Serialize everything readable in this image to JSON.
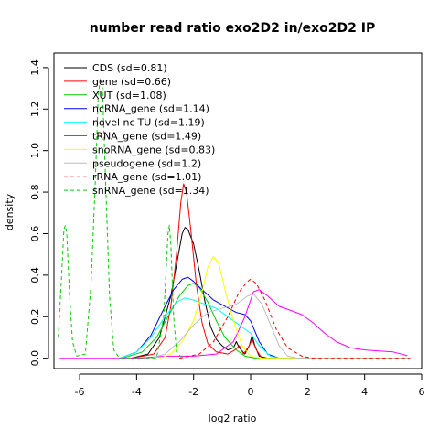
{
  "chart_data": {
    "type": "line",
    "title": "number read ratio exo2D2 in/exo2D2 IP",
    "xlabel": "log2 ratio",
    "ylabel": "density",
    "xlim": [
      -6.9,
      6.0
    ],
    "ylim": [
      -0.05,
      1.47
    ],
    "xticks": [
      -6,
      -4,
      -2,
      0,
      2,
      4,
      6
    ],
    "yticks": [
      0.0,
      0.2,
      0.4,
      0.6,
      0.8,
      1.0,
      1.2,
      1.4
    ],
    "grid": false,
    "legend_position": "top-left",
    "series": [
      {
        "name": "CDS (sd=0.81)",
        "color": "#000000",
        "dash": "solid",
        "points": [
          [
            -4.2,
            0.0
          ],
          [
            -3.6,
            0.02
          ],
          [
            -3.2,
            0.1
          ],
          [
            -2.8,
            0.3
          ],
          [
            -2.6,
            0.45
          ],
          [
            -2.4,
            0.6
          ],
          [
            -2.3,
            0.63
          ],
          [
            -2.2,
            0.62
          ],
          [
            -2.0,
            0.55
          ],
          [
            -1.8,
            0.42
          ],
          [
            -1.6,
            0.27
          ],
          [
            -1.4,
            0.15
          ],
          [
            -1.2,
            0.09
          ],
          [
            -1.0,
            0.06
          ],
          [
            -0.8,
            0.04
          ],
          [
            -0.6,
            0.05
          ],
          [
            -0.5,
            0.08
          ],
          [
            -0.4,
            0.05
          ],
          [
            -0.2,
            0.02
          ],
          [
            -0.05,
            0.06
          ],
          [
            0.05,
            0.11
          ],
          [
            0.15,
            0.06
          ],
          [
            0.3,
            0.01
          ],
          [
            0.6,
            0.0
          ],
          [
            5.6,
            0.0
          ]
        ]
      },
      {
        "name": "gene (sd=0.66)",
        "color": "#ff0000",
        "dash": "solid",
        "points": [
          [
            -4.2,
            0.0
          ],
          [
            -3.4,
            0.02
          ],
          [
            -3.0,
            0.1
          ],
          [
            -2.8,
            0.25
          ],
          [
            -2.6,
            0.5
          ],
          [
            -2.45,
            0.75
          ],
          [
            -2.35,
            0.84
          ],
          [
            -2.25,
            0.8
          ],
          [
            -2.1,
            0.62
          ],
          [
            -1.9,
            0.35
          ],
          [
            -1.7,
            0.17
          ],
          [
            -1.5,
            0.07
          ],
          [
            -1.2,
            0.03
          ],
          [
            -0.8,
            0.02
          ],
          [
            -0.55,
            0.04
          ],
          [
            -0.4,
            0.06
          ],
          [
            -0.25,
            0.02
          ],
          [
            -0.05,
            0.06
          ],
          [
            0.05,
            0.09
          ],
          [
            0.2,
            0.04
          ],
          [
            0.4,
            0.0
          ],
          [
            5.6,
            0.0
          ]
        ]
      },
      {
        "name": "XUT (sd=1.08)",
        "color": "#00cc00",
        "dash": "solid",
        "points": [
          [
            -4.5,
            0.0
          ],
          [
            -3.8,
            0.03
          ],
          [
            -3.3,
            0.1
          ],
          [
            -2.9,
            0.2
          ],
          [
            -2.5,
            0.3
          ],
          [
            -2.2,
            0.35
          ],
          [
            -2.0,
            0.36
          ],
          [
            -1.8,
            0.34
          ],
          [
            -1.5,
            0.27
          ],
          [
            -1.2,
            0.18
          ],
          [
            -0.9,
            0.1
          ],
          [
            -0.5,
            0.04
          ],
          [
            -0.2,
            0.01
          ],
          [
            0.2,
            0.0
          ],
          [
            5.6,
            0.0
          ]
        ]
      },
      {
        "name": "ncRNA_gene (sd=1.14)",
        "color": "#0000ff",
        "dash": "solid",
        "points": [
          [
            -4.6,
            0.0
          ],
          [
            -4.0,
            0.03
          ],
          [
            -3.5,
            0.11
          ],
          [
            -3.0,
            0.25
          ],
          [
            -2.7,
            0.33
          ],
          [
            -2.4,
            0.38
          ],
          [
            -2.2,
            0.39
          ],
          [
            -2.0,
            0.37
          ],
          [
            -1.7,
            0.33
          ],
          [
            -1.3,
            0.28
          ],
          [
            -0.9,
            0.25
          ],
          [
            -0.5,
            0.22
          ],
          [
            -0.2,
            0.21
          ],
          [
            0.0,
            0.18
          ],
          [
            0.3,
            0.08
          ],
          [
            0.6,
            0.02
          ],
          [
            1.0,
            0.0
          ],
          [
            5.6,
            0.0
          ]
        ]
      },
      {
        "name": "novel nc-TU (sd=1.19)",
        "color": "#00ffff",
        "dash": "solid",
        "points": [
          [
            -4.6,
            0.0
          ],
          [
            -4.0,
            0.03
          ],
          [
            -3.5,
            0.1
          ],
          [
            -3.0,
            0.2
          ],
          [
            -2.6,
            0.27
          ],
          [
            -2.3,
            0.29
          ],
          [
            -2.0,
            0.28
          ],
          [
            -1.6,
            0.26
          ],
          [
            -1.2,
            0.24
          ],
          [
            -0.8,
            0.2
          ],
          [
            -0.4,
            0.16
          ],
          [
            0.0,
            0.12
          ],
          [
            0.3,
            0.06
          ],
          [
            0.7,
            0.01
          ],
          [
            1.0,
            0.0
          ],
          [
            5.6,
            0.0
          ]
        ]
      },
      {
        "name": "tRNA_gene (sd=1.49)",
        "color": "#ff00ff",
        "dash": "solid",
        "points": [
          [
            -6.7,
            0.0
          ],
          [
            -4.0,
            0.0
          ],
          [
            -3.0,
            0.01
          ],
          [
            -2.0,
            0.01
          ],
          [
            -1.2,
            0.02
          ],
          [
            -0.6,
            0.08
          ],
          [
            -0.2,
            0.2
          ],
          [
            0.1,
            0.32
          ],
          [
            0.3,
            0.33
          ],
          [
            0.6,
            0.3
          ],
          [
            1.0,
            0.25
          ],
          [
            1.4,
            0.23
          ],
          [
            1.8,
            0.21
          ],
          [
            2.2,
            0.17
          ],
          [
            2.6,
            0.12
          ],
          [
            3.0,
            0.08
          ],
          [
            3.5,
            0.05
          ],
          [
            4.0,
            0.04
          ],
          [
            4.5,
            0.035
          ],
          [
            5.0,
            0.03
          ],
          [
            5.5,
            0.012
          ]
        ]
      },
      {
        "name": "snoRNA_gene (sd=0.83)",
        "color": "#ffff00",
        "dash": "solid",
        "points": [
          [
            -3.2,
            0.0
          ],
          [
            -2.8,
            0.02
          ],
          [
            -2.4,
            0.08
          ],
          [
            -2.0,
            0.18
          ],
          [
            -1.7,
            0.32
          ],
          [
            -1.5,
            0.44
          ],
          [
            -1.3,
            0.49
          ],
          [
            -1.1,
            0.45
          ],
          [
            -0.9,
            0.33
          ],
          [
            -0.6,
            0.18
          ],
          [
            -0.3,
            0.06
          ],
          [
            0.0,
            0.01
          ],
          [
            0.4,
            0.0
          ],
          [
            5.6,
            0.0
          ]
        ]
      },
      {
        "name": "pseudogene (sd=1.2)",
        "color": "#bebebe",
        "dash": "solid",
        "points": [
          [
            -3.5,
            0.0
          ],
          [
            -3.0,
            0.02
          ],
          [
            -2.5,
            0.08
          ],
          [
            -2.0,
            0.16
          ],
          [
            -1.5,
            0.22
          ],
          [
            -1.0,
            0.24
          ],
          [
            -0.5,
            0.26
          ],
          [
            -0.1,
            0.3
          ],
          [
            0.1,
            0.31
          ],
          [
            0.4,
            0.26
          ],
          [
            0.7,
            0.16
          ],
          [
            1.0,
            0.06
          ],
          [
            1.3,
            0.01
          ],
          [
            1.7,
            0.0
          ],
          [
            5.6,
            0.0
          ]
        ]
      },
      {
        "name": "rRNA_gene (sd=1.01)",
        "color": "#ff0000",
        "dash": "dashed",
        "points": [
          [
            -2.5,
            0.0
          ],
          [
            -1.8,
            0.02
          ],
          [
            -1.3,
            0.08
          ],
          [
            -0.8,
            0.2
          ],
          [
            -0.4,
            0.32
          ],
          [
            -0.1,
            0.37
          ],
          [
            0.0,
            0.38
          ],
          [
            0.2,
            0.36
          ],
          [
            0.5,
            0.28
          ],
          [
            0.9,
            0.14
          ],
          [
            1.3,
            0.05
          ],
          [
            1.8,
            0.01
          ],
          [
            2.2,
            0.0
          ],
          [
            5.6,
            0.0
          ]
        ]
      },
      {
        "name": "snRNA_gene (sd=1.34)",
        "color": "#00cc00",
        "dash": "dashed",
        "points": [
          [
            -6.75,
            0.1
          ],
          [
            -6.65,
            0.35
          ],
          [
            -6.55,
            0.62
          ],
          [
            -6.5,
            0.64
          ],
          [
            -6.45,
            0.6
          ],
          [
            -6.35,
            0.3
          ],
          [
            -6.25,
            0.08
          ],
          [
            -6.1,
            0.01
          ],
          [
            -5.8,
            0.02
          ],
          [
            -5.6,
            0.35
          ],
          [
            -5.45,
            0.85
          ],
          [
            -5.35,
            1.25
          ],
          [
            -5.28,
            1.35
          ],
          [
            -5.2,
            1.3
          ],
          [
            -5.1,
            0.9
          ],
          [
            -4.95,
            0.3
          ],
          [
            -4.8,
            0.04
          ],
          [
            -4.6,
            0.0
          ],
          [
            -3.3,
            0.0
          ],
          [
            -3.05,
            0.2
          ],
          [
            -2.9,
            0.6
          ],
          [
            -2.85,
            0.64
          ],
          [
            -2.8,
            0.55
          ],
          [
            -2.7,
            0.2
          ],
          [
            -2.6,
            0.03
          ],
          [
            -2.4,
            0.0
          ]
        ]
      }
    ]
  }
}
